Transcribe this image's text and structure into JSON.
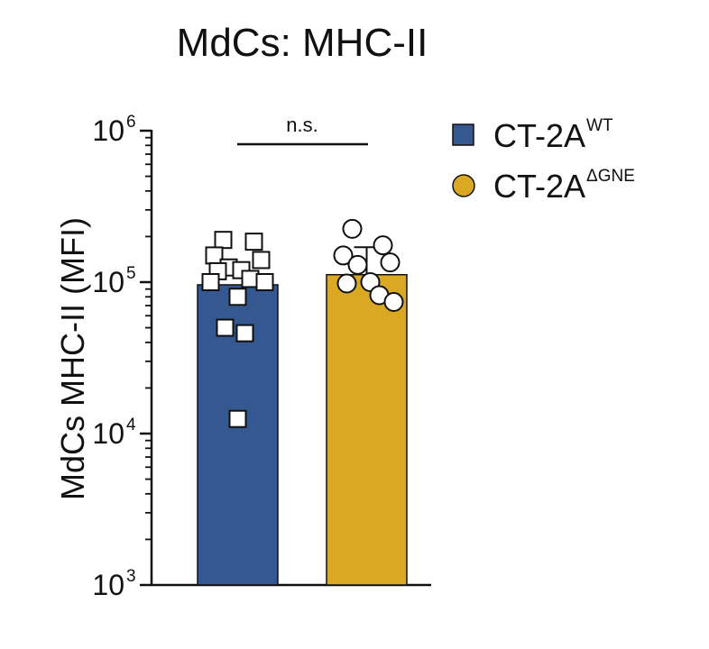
{
  "chart_data": {
    "type": "bar",
    "title": "MdCs: MHC-II",
    "ylabel": "MdCs MHC-II (MFI)",
    "yscale": "log",
    "ylim": [
      1000,
      1000000
    ],
    "y_ticks": [
      {
        "base": "10",
        "exp": "3",
        "value": 1000
      },
      {
        "base": "10",
        "exp": "4",
        "value": 10000
      },
      {
        "base": "10",
        "exp": "5",
        "value": 100000
      },
      {
        "base": "10",
        "exp": "6",
        "value": 1000000
      }
    ],
    "grid": false,
    "legend_position": "top-right",
    "significance": "n.s.",
    "series": [
      {
        "legend_base": "CT-2A",
        "legend_sup": "WT",
        "color": "#34588f",
        "marker": "square",
        "mean": 96000,
        "error_upper": null,
        "points": [
          190000,
          185000,
          150000,
          140000,
          125000,
          120000,
          118000,
          105000,
          100000,
          100000,
          80000,
          50000,
          46000,
          12500
        ]
      },
      {
        "legend_base": "CT-2A",
        "legend_sup": "ΔGNE",
        "color": "#dba824",
        "marker": "circle",
        "mean": 112000,
        "error_upper": 170000,
        "error_lower": 70000,
        "points": [
          225000,
          175000,
          150000,
          135000,
          130000,
          100000,
          98000,
          82000,
          74000
        ]
      }
    ]
  }
}
